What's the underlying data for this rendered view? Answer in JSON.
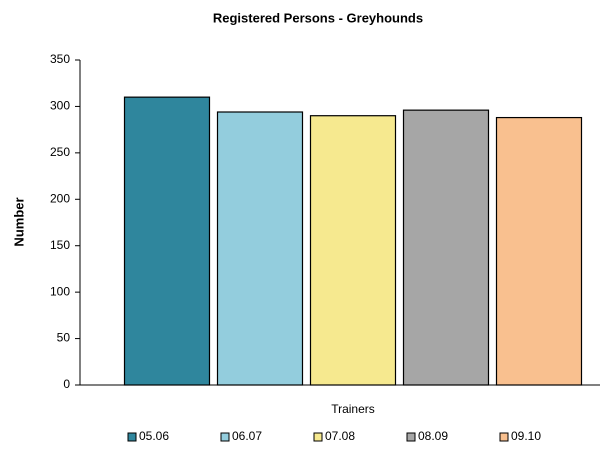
{
  "chart_data": {
    "type": "bar",
    "title": "Registered Persons - Greyhounds",
    "y_label": "Number",
    "categories": [
      "Trainers"
    ],
    "series": [
      {
        "name": "05.06",
        "color": "#2f869d",
        "values": [
          310
        ]
      },
      {
        "name": "06.07",
        "color": "#93cddd",
        "values": [
          294
        ]
      },
      {
        "name": "07.08",
        "color": "#f6e98f",
        "values": [
          290
        ]
      },
      {
        "name": "08.09",
        "color": "#a6a6a6",
        "values": [
          296
        ]
      },
      {
        "name": "09.10",
        "color": "#f9c08f",
        "values": [
          288
        ]
      }
    ],
    "ylim": [
      0,
      350
    ],
    "yticks": [
      0,
      50,
      100,
      150,
      200,
      250,
      300,
      350
    ],
    "grid": false,
    "legend": "bottom"
  }
}
